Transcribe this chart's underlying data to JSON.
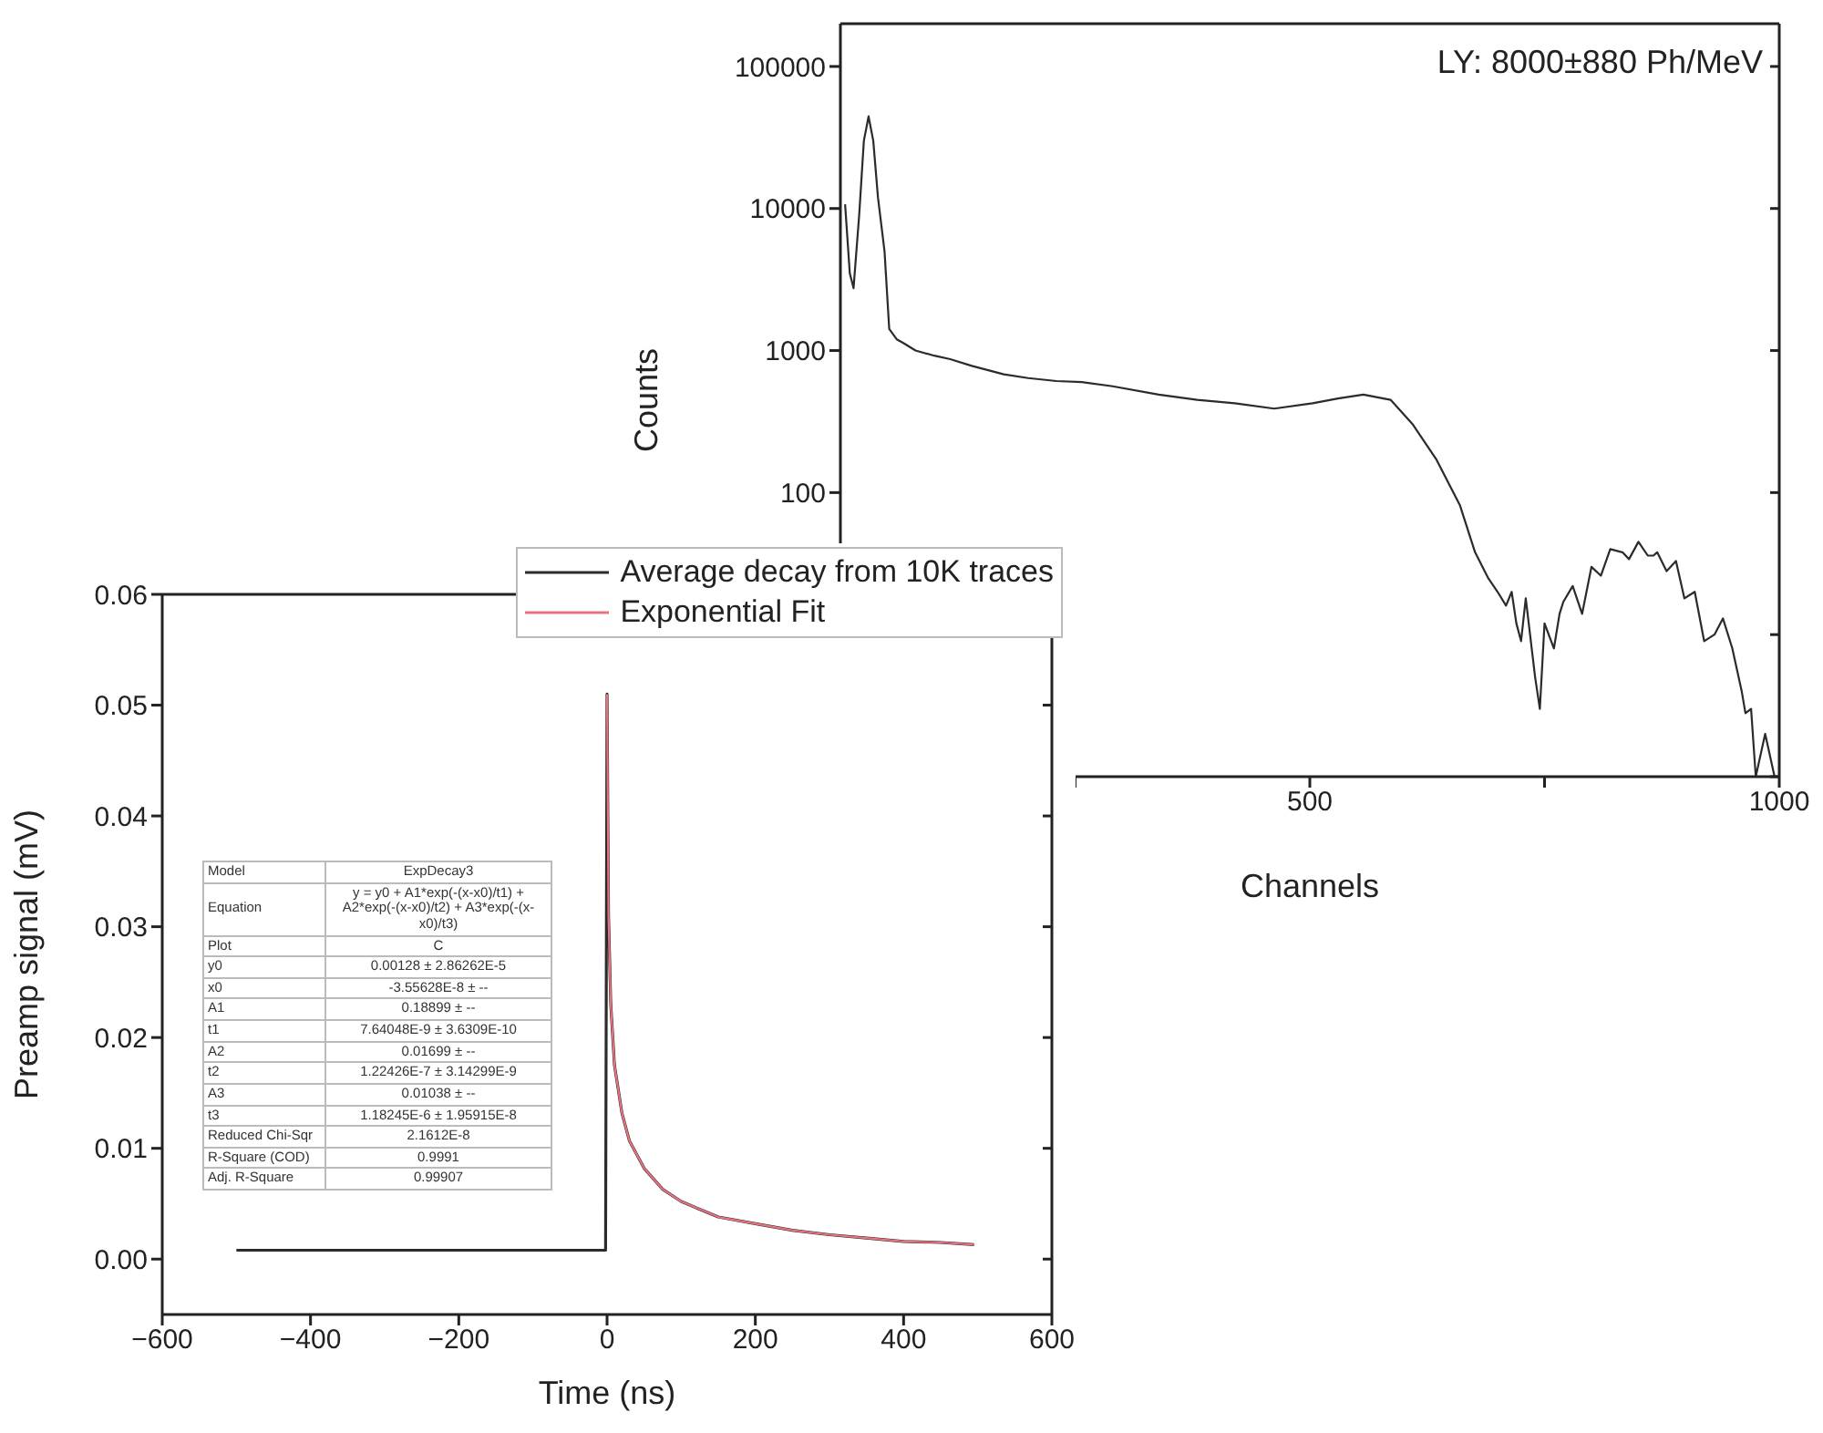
{
  "chart_data": [
    {
      "type": "line",
      "xlabel": "Channels",
      "ylabel": "Counts",
      "log": "y",
      "marker": "none",
      "line_style": "solid",
      "annotations": [
        "LY: 8000±880 Ph/MeV"
      ],
      "xlim": [
        0,
        1000
      ],
      "xticks": [
        {
          "value": 0,
          "label": null
        },
        {
          "value": 250,
          "label": null
        },
        500,
        {
          "value": 750,
          "label": null
        },
        1000
      ],
      "ylim": [
        1,
        200000
      ],
      "yticks": [
        {
          "value": 1,
          "label": null
        },
        {
          "value": 10,
          "label": null
        },
        100,
        1000,
        10000,
        100000
      ],
      "series": [
        {
          "color": "#2b2b2b",
          "x": [
            5,
            10,
            14,
            20,
            25,
            30,
            35,
            40,
            47,
            52,
            60,
            67,
            80,
            100,
            117,
            140,
            174,
            200,
            230,
            257,
            290,
            339,
            380,
            420,
            462,
            503,
            530,
            557,
            586,
            610,
            635,
            660,
            676,
            690,
            700,
            709,
            715,
            720,
            725,
            730,
            740,
            745,
            750,
            760,
            766,
            770,
            780,
            790,
            800,
            810,
            820,
            833,
            840,
            850,
            860,
            866,
            870,
            880,
            890,
            899,
            910,
            920,
            931,
            940,
            950,
            960,
            964,
            970,
            975,
            985,
            995
          ],
          "values": [
            10700,
            3500,
            2750,
            9000,
            30000,
            44500,
            30000,
            12000,
            5000,
            1420,
            1200,
            1130,
            1000,
            920,
            870,
            780,
            680,
            640,
            610,
            600,
            560,
            490,
            450,
            425,
            390,
            425,
            460,
            490,
            450,
            300,
            170,
            81,
            38,
            25,
            20,
            16,
            20,
            12,
            9,
            18,
            5,
            3,
            12,
            8,
            14,
            17,
            22,
            14,
            30,
            26,
            40,
            38,
            34,
            45,
            36,
            36,
            38,
            28,
            33,
            18,
            20,
            9,
            10,
            13,
            8,
            4,
            2.8,
            3,
            1,
            2,
            1
          ]
        }
      ]
    },
    {
      "type": "line",
      "xlabel": "Time (ns)",
      "ylabel": "Preamp signal (mV)",
      "legend": "top right",
      "marker": "none",
      "line_style": "solid",
      "xlim": [
        -600,
        600
      ],
      "xticks": [
        {
          "value": -600,
          "label": "−600"
        },
        {
          "value": -400,
          "label": "−400"
        },
        {
          "value": -200,
          "label": "−200"
        },
        0,
        200,
        400,
        600
      ],
      "ylim": [
        -0.005,
        0.06
      ],
      "yticks": [
        {
          "value": 0,
          "label": "0.00"
        },
        0.01,
        0.02,
        0.03,
        0.04,
        0.05,
        {
          "value": 0.06,
          "label": "0.06"
        }
      ],
      "annotations": [
        "Model",
        "ExpDecay3",
        "Equation",
        "y = y0 + A1*exp(-(x-x0)/t1) + A2*exp(-(x-x0)/t2) + A3*exp(-(x-x0)/t3)",
        "Plot",
        "C",
        "y0",
        "0.00128 ± 2.86262E-5",
        "x0",
        "-3.55628E-8 ± --",
        "A1",
        "0.18899 ± --",
        "t1",
        "7.64048E-9 ± 3.6309E-10",
        "A2",
        "0.01699 ± --",
        "t2",
        "1.22426E-7 ± 3.14299E-9",
        "A3",
        "0.01038 ± --",
        "t3",
        "1.18245E-6 ± 1.95915E-8",
        "Reduced Chi-Sqr",
        "2.1612E-8",
        "R-Square (COD)",
        "0.9991",
        "Adj. R-Square",
        "0.99907"
      ],
      "series": [
        {
          "name": "Average decay from 10K traces",
          "color": "#2b2b2b",
          "x": [
            -500,
            -400,
            -300,
            -200,
            -100,
            -5,
            -2,
            0,
            2,
            5,
            10,
            20,
            30,
            50,
            75,
            100,
            150,
            200,
            250,
            300,
            350,
            400,
            450,
            495
          ],
          "values": [
            0.0008,
            0.0008,
            0.0008,
            0.0008,
            0.0008,
            0.0008,
            0.0008,
            0.051,
            0.031,
            0.023,
            0.0175,
            0.0132,
            0.0107,
            0.0082,
            0.0063,
            0.0052,
            0.0038,
            0.0032,
            0.0026,
            0.0022,
            0.0019,
            0.0016,
            0.0015,
            0.0013
          ]
        },
        {
          "name": "Exponential Fit",
          "color": "#e8737f",
          "x": [
            0,
            2,
            5,
            10,
            20,
            30,
            50,
            75,
            100,
            150,
            200,
            250,
            300,
            350,
            400,
            450,
            495
          ],
          "values": [
            0.051,
            0.031,
            0.023,
            0.0175,
            0.0132,
            0.0107,
            0.0082,
            0.0063,
            0.0052,
            0.0038,
            0.0032,
            0.0026,
            0.0022,
            0.0019,
            0.0016,
            0.0015,
            0.0013
          ]
        }
      ]
    }
  ]
}
